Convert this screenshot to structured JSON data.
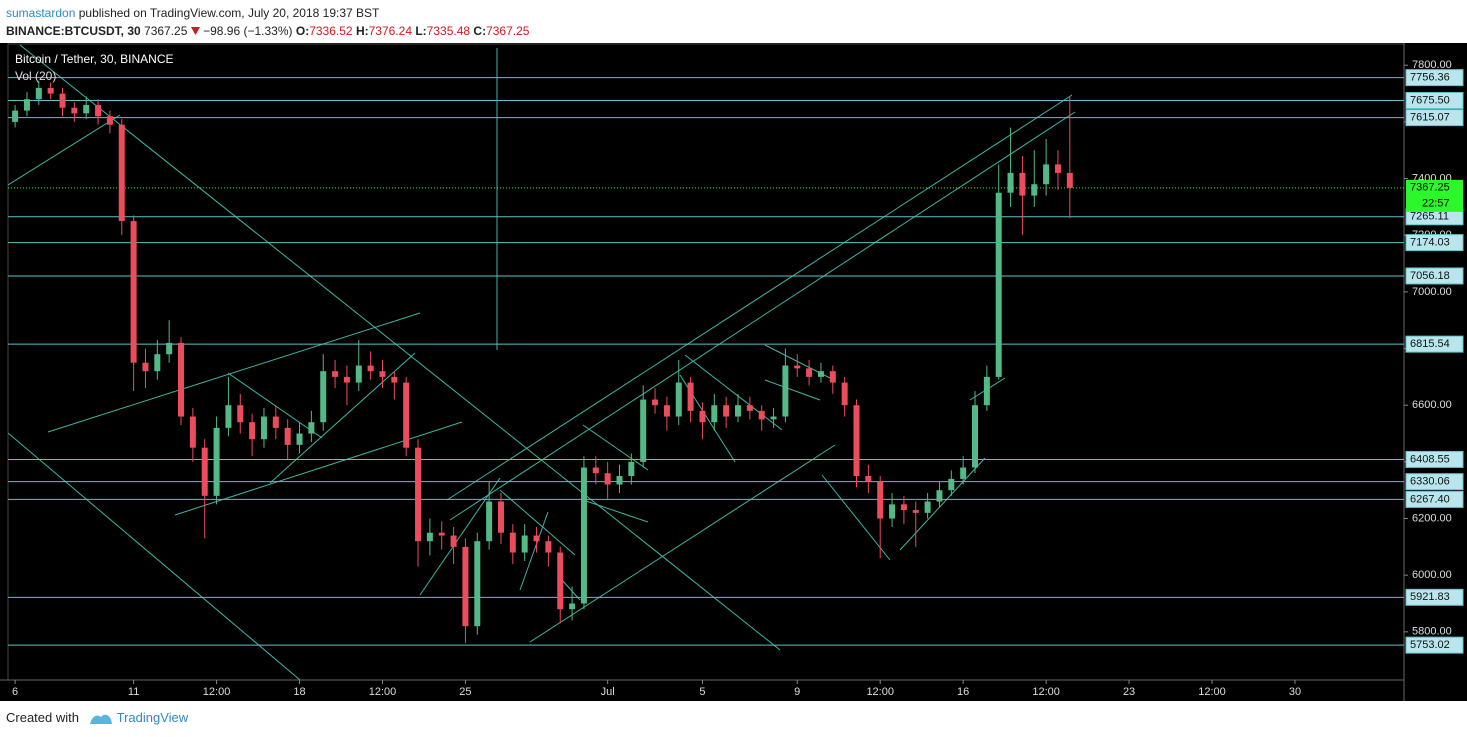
{
  "header": {
    "author": "sumastardon",
    "published": "published on TradingView.com, July 20, 2018 19:37 BST",
    "symbol": "BINANCE:BTCUSDT, 30",
    "last": "7367.25",
    "change": "−98.96 (−1.33%)",
    "ohlc": [
      {
        "label": "O:",
        "value": "7336.52"
      },
      {
        "label": "H:",
        "value": "7376.24"
      },
      {
        "label": "L:",
        "value": "7335.48"
      },
      {
        "label": "C:",
        "value": "7367.25"
      }
    ]
  },
  "chart_data": {
    "type": "candlestick",
    "title": "Bitcoin / Tether, 30, BINANCE",
    "subtitle": "Vol (20)",
    "x": [
      6,
      6.5,
      7,
      7.5,
      8,
      8.5,
      9,
      9.5,
      10,
      10.5,
      11,
      11.5,
      12,
      12.5,
      13,
      13.5,
      14,
      14.5,
      15,
      15.5,
      16,
      16.5,
      17,
      17.5,
      18,
      18.5,
      19,
      19.5,
      20,
      20.5,
      21,
      21.5,
      22,
      22.5,
      23,
      23.5,
      24,
      24.5,
      25,
      25.5,
      26,
      26.5,
      27,
      27.5,
      28,
      28.5,
      29,
      29.5,
      30,
      30.5,
      31,
      31.5,
      32,
      32.5,
      33,
      33.5,
      34,
      34.5,
      35,
      35.5,
      36,
      36.5,
      37,
      37.5,
      38,
      38.5,
      39,
      39.5,
      40,
      40.5,
      41,
      41.5,
      42,
      42.5,
      43,
      43.5,
      44,
      44.5,
      45,
      45.5,
      46,
      46.5,
      47,
      47.5,
      48,
      48.5,
      49,
      49.5,
      50,
      50.5
    ],
    "open": [
      7600,
      7640,
      7680,
      7720,
      7700,
      7650,
      7630,
      7660,
      7620,
      7590,
      7250,
      6750,
      6720,
      6780,
      6820,
      6560,
      6450,
      6280,
      6520,
      6600,
      6540,
      6480,
      6560,
      6520,
      6460,
      6500,
      6540,
      6720,
      6700,
      6680,
      6740,
      6720,
      6700,
      6680,
      6450,
      6120,
      6150,
      6140,
      6100,
      5820,
      6120,
      6260,
      6150,
      6080,
      6140,
      6120,
      6080,
      5880,
      5900,
      6380,
      6360,
      6320,
      6350,
      6400,
      6620,
      6600,
      6560,
      6680,
      6580,
      6540,
      6600,
      6560,
      6600,
      6580,
      6550,
      6560,
      6740,
      6730,
      6700,
      6720,
      6680,
      6600,
      6350,
      6330,
      6200,
      6250,
      6230,
      6220,
      6260,
      6300,
      6340,
      6380,
      6600,
      6700,
      7350,
      7420,
      7340,
      7380,
      7450,
      7420
    ],
    "high": [
      7660,
      7705,
      7745,
      7740,
      7720,
      7670,
      7690,
      7680,
      7640,
      7610,
      7270,
      6800,
      6830,
      6900,
      6840,
      6590,
      6480,
      6560,
      6700,
      6640,
      6570,
      6590,
      6600,
      6550,
      6540,
      6580,
      6780,
      6760,
      6740,
      6830,
      6790,
      6760,
      6720,
      6700,
      6480,
      6200,
      6190,
      6170,
      6130,
      6150,
      6330,
      6290,
      6180,
      6180,
      6170,
      6140,
      6100,
      5960,
      6420,
      6420,
      6400,
      6390,
      6430,
      6670,
      6660,
      6630,
      6760,
      6700,
      6610,
      6640,
      6630,
      6640,
      6630,
      6600,
      6590,
      6800,
      6780,
      6760,
      6750,
      6740,
      6700,
      6620,
      6390,
      6350,
      6290,
      6280,
      6260,
      6290,
      6330,
      6370,
      6420,
      6650,
      6740,
      7450,
      7580,
      7480,
      7500,
      7540,
      7500,
      7690
    ],
    "low": [
      7580,
      7620,
      7660,
      7680,
      7620,
      7600,
      7610,
      7590,
      7560,
      7200,
      6650,
      6660,
      6690,
      6750,
      6530,
      6400,
      6130,
      6250,
      6490,
      6500,
      6420,
      6450,
      6480,
      6410,
      6430,
      6470,
      6510,
      6660,
      6600,
      6650,
      6690,
      6660,
      6620,
      6420,
      6030,
      6070,
      6090,
      6040,
      5760,
      5790,
      6090,
      6110,
      6040,
      6050,
      6080,
      6030,
      5830,
      5840,
      5880,
      6320,
      6270,
      6290,
      6320,
      6380,
      6570,
      6510,
      6530,
      6540,
      6480,
      6510,
      6520,
      6540,
      6550,
      6510,
      6520,
      6540,
      6700,
      6670,
      6680,
      6640,
      6560,
      6310,
      6290,
      6060,
      6170,
      6180,
      6100,
      6200,
      6240,
      6280,
      6320,
      6360,
      6580,
      6690,
      7300,
      7200,
      7300,
      7340,
      7360,
      7260
    ],
    "close": [
      7640,
      7680,
      7720,
      7700,
      7650,
      7630,
      7660,
      7620,
      7590,
      7250,
      6750,
      6720,
      6780,
      6820,
      6560,
      6450,
      6280,
      6520,
      6600,
      6540,
      6480,
      6560,
      6520,
      6460,
      6500,
      6540,
      6720,
      6700,
      6680,
      6740,
      6720,
      6700,
      6680,
      6450,
      6120,
      6150,
      6140,
      6100,
      5820,
      6120,
      6260,
      6150,
      6080,
      6140,
      6120,
      6080,
      5880,
      5900,
      6380,
      6360,
      6320,
      6350,
      6400,
      6620,
      6600,
      6560,
      6680,
      6580,
      6540,
      6600,
      6560,
      6600,
      6580,
      6550,
      6560,
      6740,
      6730,
      6700,
      6720,
      6680,
      6600,
      6350,
      6330,
      6200,
      6250,
      6230,
      6220,
      6260,
      6300,
      6340,
      6380,
      6600,
      6700,
      7350,
      7420,
      7340,
      7380,
      7450,
      7420,
      7367.25
    ],
    "up_color": "#53b987",
    "down_color": "#eb4d5c",
    "xlim": [
      5.7,
      64.6
    ],
    "xticks": [
      {
        "value": 6,
        "label": "6"
      },
      {
        "value": 11,
        "label": "11"
      },
      {
        "value": 14.5,
        "label": "12:00"
      },
      {
        "value": 18,
        "label": "18"
      },
      {
        "value": 21.5,
        "label": "12:00"
      },
      {
        "value": 25,
        "label": "25"
      },
      {
        "value": 31,
        "label": "Jul"
      },
      {
        "value": 35,
        "label": "5"
      },
      {
        "value": 39,
        "label": "9"
      },
      {
        "value": 42.5,
        "label": "12:00"
      },
      {
        "value": 46,
        "label": "16"
      },
      {
        "value": 49.5,
        "label": "12:00"
      },
      {
        "value": 53,
        "label": "23"
      },
      {
        "value": 56.5,
        "label": "12:00"
      },
      {
        "value": 60,
        "label": "30"
      }
    ],
    "ylim": [
      5630,
      7875
    ],
    "yticks": [
      {
        "value": 5800,
        "label": "5800.00"
      },
      {
        "value": 6000,
        "label": "6000.00"
      },
      {
        "value": 6200,
        "label": "6200.00"
      },
      {
        "value": 6400,
        "label": "6400.00"
      },
      {
        "value": 6600,
        "label": "6600.00"
      },
      {
        "value": 6800,
        "label": "6800.00"
      },
      {
        "value": 7000,
        "label": "7000.00"
      },
      {
        "value": 7200,
        "label": "7200.00"
      },
      {
        "value": 7400,
        "label": "7400.00"
      },
      {
        "value": 7600,
        "label": "7600.00"
      },
      {
        "value": 7800,
        "label": "7800.00"
      }
    ],
    "levels": [
      {
        "value": 7756.36,
        "label": "7756.36"
      },
      {
        "value": 7675.5,
        "label": "7675.50"
      },
      {
        "value": 7615.07,
        "label": "7615.07"
      },
      {
        "value": 7265.11,
        "label": "7265.11"
      },
      {
        "value": 7174.03,
        "label": "7174.03"
      },
      {
        "value": 7056.18,
        "label": "7056.18"
      },
      {
        "value": 6815.54,
        "label": "6815.54"
      },
      {
        "value": 6408.55,
        "label": "6408.55"
      },
      {
        "value": 6330.06,
        "label": "6330.06"
      },
      {
        "value": 6267.4,
        "label": "6267.40"
      },
      {
        "value": 5921.83,
        "label": "5921.83"
      },
      {
        "value": 5753.02,
        "label": "5753.02"
      }
    ],
    "level_color": "#5ec3c8",
    "last_price": 7367.25,
    "last_color": "#2bf72b",
    "countdown": "22:57"
  },
  "footer": {
    "created": "Created with",
    "brand": "TradingView"
  }
}
